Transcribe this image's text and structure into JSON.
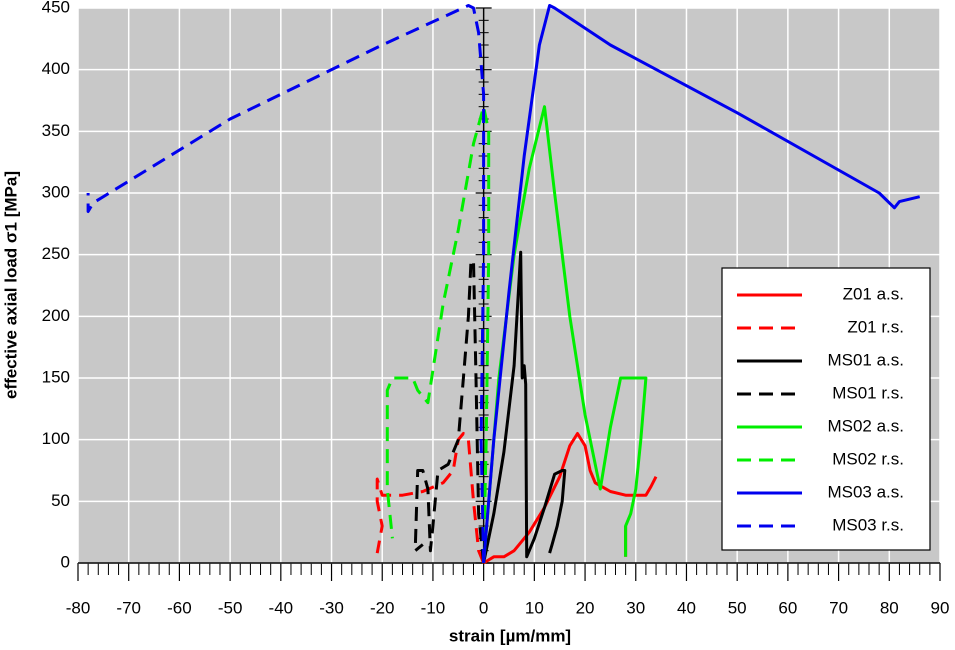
{
  "chart_data": {
    "type": "line",
    "xlabel": "strain [µm/mm]",
    "ylabel": "effective axial load σ1 [MPa]",
    "xlim": [
      -80,
      90
    ],
    "ylim": [
      0,
      450
    ],
    "xticks": [
      -80,
      -70,
      -60,
      -50,
      -40,
      -30,
      -20,
      -10,
      0,
      10,
      20,
      30,
      40,
      50,
      60,
      70,
      80,
      90
    ],
    "yticks": [
      0,
      50,
      100,
      150,
      200,
      250,
      300,
      350,
      400,
      450
    ],
    "grid": true,
    "legend": "lower right",
    "series": [
      {
        "name": "Z01 a.s.",
        "color": "#ff0000",
        "dash": false,
        "x": [
          0,
          2,
          4,
          6,
          9,
          12,
          15,
          17,
          18.5,
          20,
          21,
          22,
          25,
          28,
          32,
          33,
          34,
          null,
          28,
          28
        ],
        "values": [
          0,
          5,
          5,
          10,
          25,
          45,
          70,
          95,
          105,
          95,
          75,
          65,
          58,
          55,
          55,
          62,
          70,
          null,
          5,
          30
        ]
      },
      {
        "name": "Z01 r.s.",
        "color": "#ff0000",
        "dash": true,
        "x": [
          0,
          -1,
          -2,
          -3,
          -4,
          -5,
          -6,
          -8,
          -12,
          -16,
          -20,
          -21,
          -21,
          -20,
          -21
        ],
        "values": [
          0,
          10,
          50,
          100,
          105,
          100,
          75,
          65,
          58,
          55,
          55,
          68,
          50,
          30,
          8
        ]
      },
      {
        "name": "MS01 a.s.",
        "color": "#000000",
        "dash": false,
        "x": [
          0,
          2,
          4,
          6,
          7,
          7.3,
          7.6,
          8,
          8.3,
          8.5,
          10,
          12,
          14,
          15.5,
          16,
          15.5,
          14.5,
          13.5,
          13
        ],
        "values": [
          0,
          40,
          90,
          160,
          230,
          252,
          150,
          160,
          145,
          5,
          20,
          45,
          72,
          75,
          75,
          50,
          30,
          15,
          8
        ]
      },
      {
        "name": "MS01 r.s.",
        "color": "#000000",
        "dash": true,
        "x": [
          0,
          -1,
          -1.5,
          -2,
          -2.5,
          -3,
          -4,
          -5,
          -7,
          -9,
          -10,
          -10.5,
          -11,
          -12,
          -13,
          -13.5,
          -12
        ],
        "values": [
          0,
          40,
          150,
          245,
          245,
          200,
          150,
          100,
          80,
          75,
          30,
          10,
          60,
          75,
          75,
          10,
          15
        ]
      },
      {
        "name": "MS02 a.s.",
        "color": "#00ee00",
        "dash": false,
        "x": [
          0,
          3,
          6,
          9,
          12,
          14,
          17,
          20,
          23,
          25,
          27,
          30,
          32,
          31,
          30,
          29,
          28,
          28
        ],
        "values": [
          0,
          150,
          250,
          320,
          370,
          300,
          200,
          120,
          60,
          110,
          150,
          150,
          150,
          100,
          60,
          40,
          30,
          5
        ]
      },
      {
        "name": "MS02 r.s.",
        "color": "#00ee00",
        "dash": true,
        "x": [
          0,
          0.5,
          1,
          1,
          0,
          -2,
          -5,
          -8,
          -11,
          -13,
          -14,
          -16,
          -18,
          -19,
          -19,
          -18
        ],
        "values": [
          0,
          100,
          250,
          350,
          370,
          340,
          270,
          210,
          130,
          140,
          150,
          150,
          150,
          140,
          60,
          20
        ]
      },
      {
        "name": "MS03 a.s.",
        "color": "#0000ee",
        "dash": false,
        "x": [
          0,
          2,
          5,
          8,
          11,
          13,
          14,
          25,
          50,
          78,
          81,
          82,
          86
        ],
        "values": [
          0,
          100,
          220,
          330,
          420,
          452,
          450,
          420,
          365,
          300,
          288,
          293,
          297
        ]
      },
      {
        "name": "MS03 r.s.",
        "color": "#0000ee",
        "dash": true,
        "x": [
          0,
          -0.5,
          0,
          0,
          -1,
          -2,
          -3,
          -20,
          -50,
          -77,
          -78,
          -78
        ],
        "values": [
          0,
          100,
          250,
          380,
          430,
          450,
          452,
          420,
          360,
          292,
          285,
          300
        ]
      }
    ]
  }
}
